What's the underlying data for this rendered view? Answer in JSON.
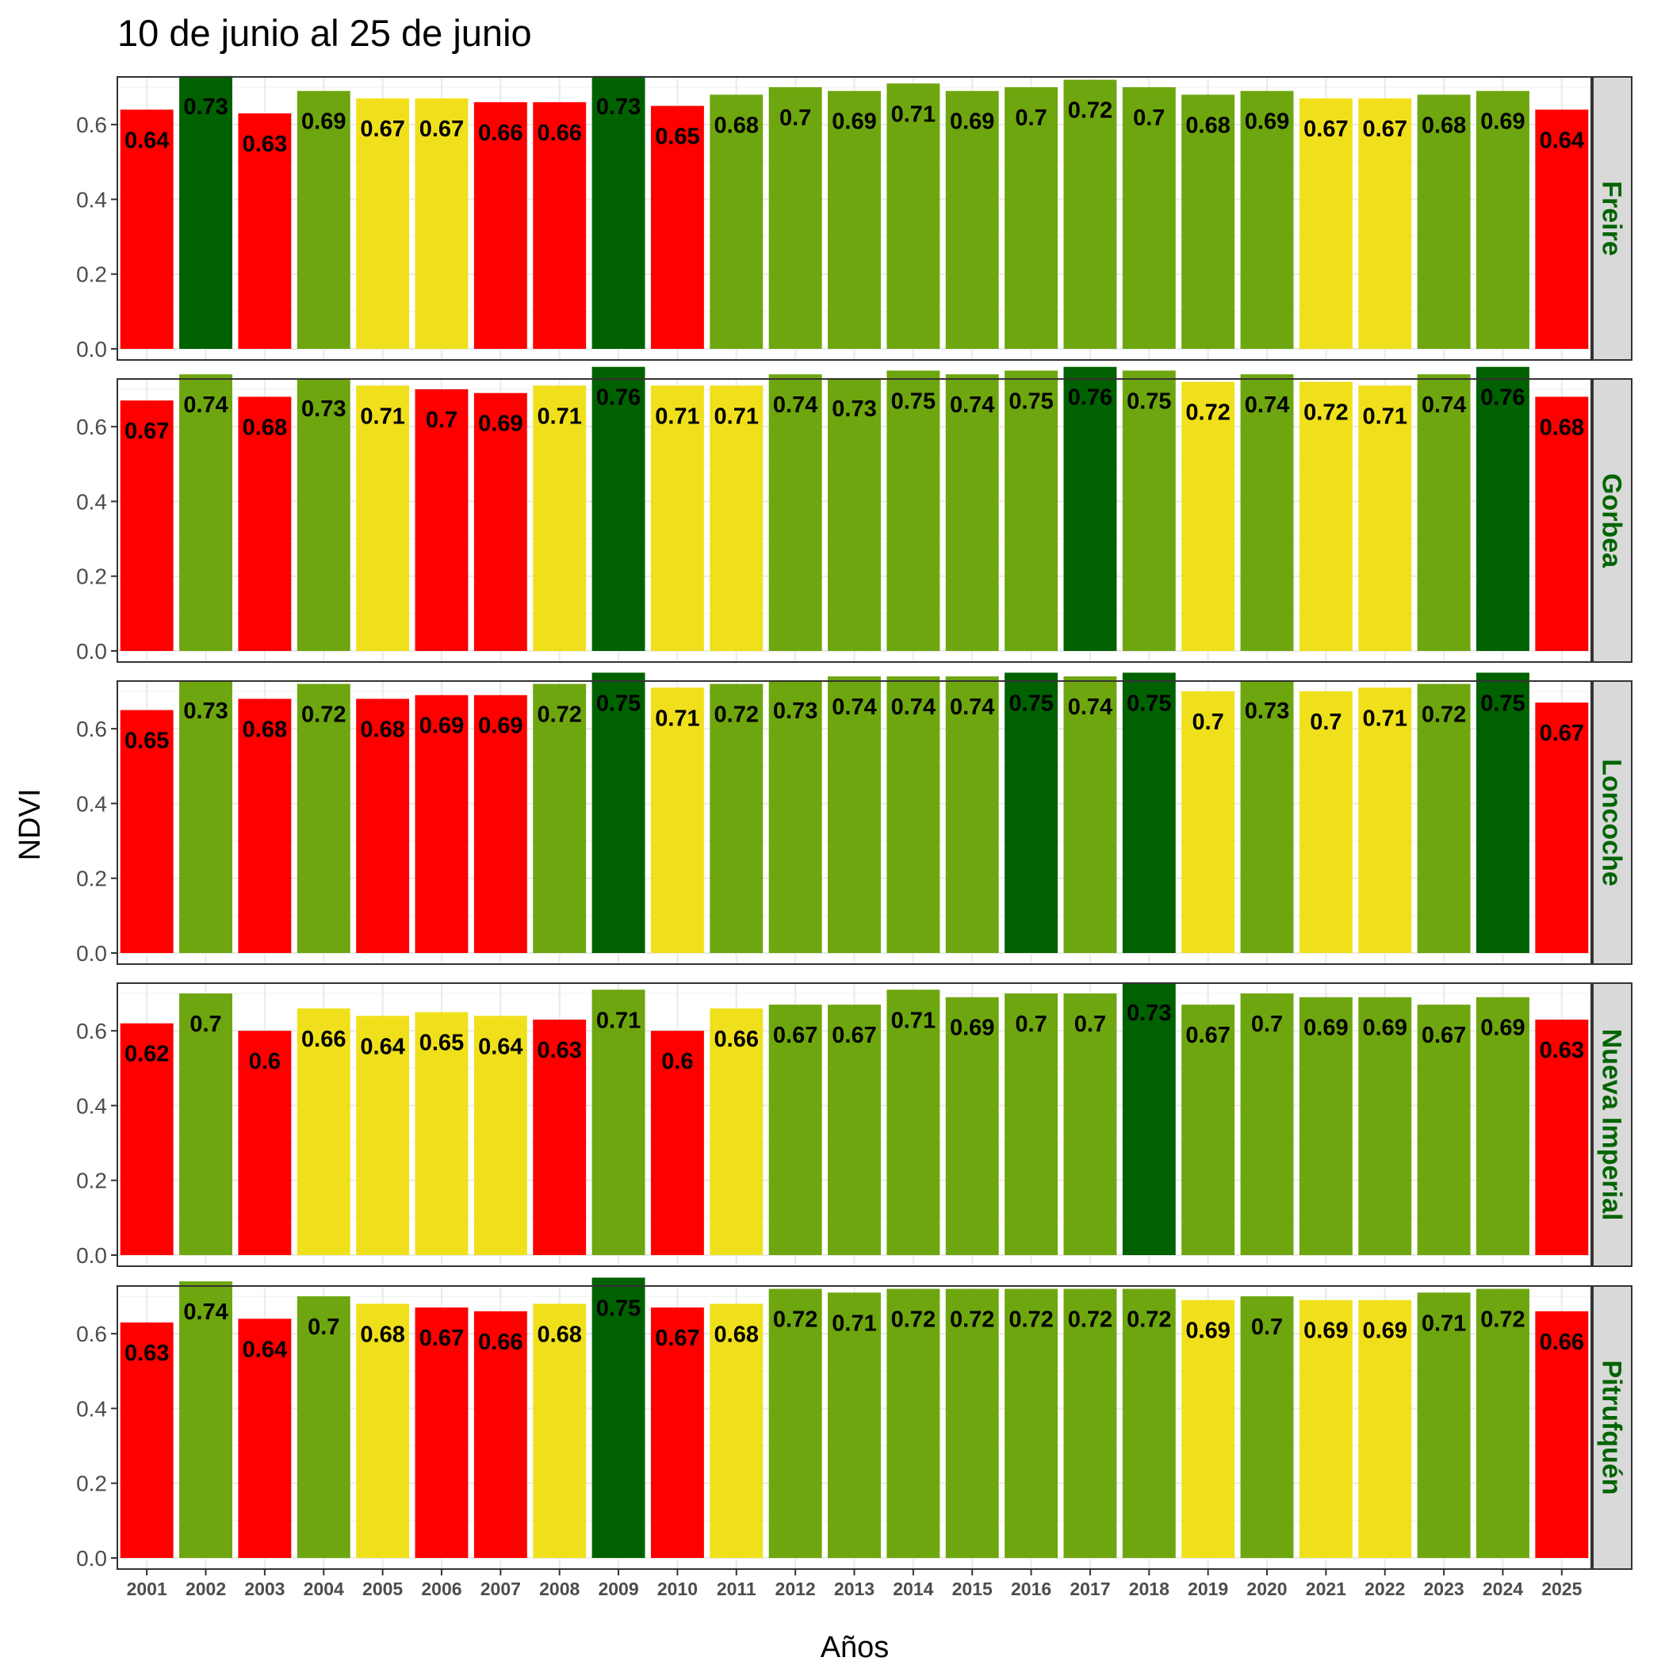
{
  "chart_data": {
    "type": "bar",
    "title": "10 de junio al 25 de junio",
    "xlabel": "Años",
    "ylabel": "NDVI",
    "ylim": [
      0,
      0.7
    ],
    "yticks": [
      "0.0",
      "0.2",
      "0.4",
      "0.6"
    ],
    "grid": true,
    "legend": "none",
    "categories": [
      "2001",
      "2002",
      "2003",
      "2004",
      "2005",
      "2006",
      "2007",
      "2008",
      "2009",
      "2010",
      "2011",
      "2012",
      "2013",
      "2014",
      "2015",
      "2016",
      "2017",
      "2018",
      "2019",
      "2020",
      "2021",
      "2022",
      "2023",
      "2024",
      "2025"
    ],
    "colors": {
      "red": "#ff0000",
      "yellow": "#f0e01c",
      "light_green": "#6ea60f",
      "dark_green": "#006100",
      "strip_bg": "#d9d9d9",
      "strip_text": "#006400"
    },
    "panels": [
      {
        "name": "Freire",
        "values": [
          0.64,
          0.73,
          0.63,
          0.69,
          0.67,
          0.67,
          0.66,
          0.66,
          0.73,
          0.65,
          0.68,
          0.7,
          0.69,
          0.71,
          0.69,
          0.7,
          0.72,
          0.7,
          0.68,
          0.69,
          0.67,
          0.67,
          0.68,
          0.69,
          0.64
        ],
        "labels": [
          "0.64",
          "0.73",
          "0.63",
          "0.69",
          "0.67",
          "0.67",
          "0.66",
          "0.66",
          "0.73",
          "0.65",
          "0.68",
          "0.7",
          "0.69",
          "0.71",
          "0.69",
          "0.7",
          "0.72",
          "0.7",
          "0.68",
          "0.69",
          "0.67",
          "0.67",
          "0.68",
          "0.69",
          "0.64"
        ],
        "bar_colors": [
          "red",
          "dark_green",
          "red",
          "light_green",
          "yellow",
          "yellow",
          "red",
          "red",
          "dark_green",
          "red",
          "light_green",
          "light_green",
          "light_green",
          "light_green",
          "light_green",
          "light_green",
          "light_green",
          "light_green",
          "light_green",
          "light_green",
          "yellow",
          "yellow",
          "light_green",
          "light_green",
          "red"
        ]
      },
      {
        "name": "Gorbea",
        "values": [
          0.67,
          0.74,
          0.68,
          0.73,
          0.71,
          0.7,
          0.69,
          0.71,
          0.76,
          0.71,
          0.71,
          0.74,
          0.73,
          0.75,
          0.74,
          0.75,
          0.76,
          0.75,
          0.72,
          0.74,
          0.72,
          0.71,
          0.74,
          0.76,
          0.68
        ],
        "labels": [
          "0.67",
          "0.74",
          "0.68",
          "0.73",
          "0.71",
          "0.7",
          "0.69",
          "0.71",
          "0.76",
          "0.71",
          "0.71",
          "0.74",
          "0.73",
          "0.75",
          "0.74",
          "0.75",
          "0.76",
          "0.75",
          "0.72",
          "0.74",
          "0.72",
          "0.71",
          "0.74",
          "0.76",
          "0.68"
        ],
        "bar_colors": [
          "red",
          "light_green",
          "red",
          "light_green",
          "yellow",
          "red",
          "red",
          "yellow",
          "dark_green",
          "yellow",
          "yellow",
          "light_green",
          "light_green",
          "light_green",
          "light_green",
          "light_green",
          "dark_green",
          "light_green",
          "yellow",
          "light_green",
          "yellow",
          "yellow",
          "light_green",
          "dark_green",
          "red"
        ]
      },
      {
        "name": "Loncoche",
        "values": [
          0.65,
          0.73,
          0.68,
          0.72,
          0.68,
          0.69,
          0.69,
          0.72,
          0.75,
          0.71,
          0.72,
          0.73,
          0.74,
          0.74,
          0.74,
          0.75,
          0.74,
          0.75,
          0.7,
          0.73,
          0.7,
          0.71,
          0.72,
          0.75,
          0.67
        ],
        "labels": [
          "0.65",
          "0.73",
          "0.68",
          "0.72",
          "0.68",
          "0.69",
          "0.69",
          "0.72",
          "0.75",
          "0.71",
          "0.72",
          "0.73",
          "0.74",
          "0.74",
          "0.74",
          "0.75",
          "0.74",
          "0.75",
          "0.7",
          "0.73",
          "0.7",
          "0.71",
          "0.72",
          "0.75",
          "0.67"
        ],
        "bar_colors": [
          "red",
          "light_green",
          "red",
          "light_green",
          "red",
          "red",
          "red",
          "light_green",
          "dark_green",
          "yellow",
          "light_green",
          "light_green",
          "light_green",
          "light_green",
          "light_green",
          "dark_green",
          "light_green",
          "dark_green",
          "yellow",
          "light_green",
          "yellow",
          "yellow",
          "light_green",
          "dark_green",
          "red"
        ]
      },
      {
        "name": "Nueva Imperial",
        "values": [
          0.62,
          0.7,
          0.6,
          0.66,
          0.64,
          0.65,
          0.64,
          0.63,
          0.71,
          0.6,
          0.66,
          0.67,
          0.67,
          0.71,
          0.69,
          0.7,
          0.7,
          0.73,
          0.67,
          0.7,
          0.69,
          0.69,
          0.67,
          0.69,
          0.63
        ],
        "labels": [
          "0.62",
          "0.7",
          "0.6",
          "0.66",
          "0.64",
          "0.65",
          "0.64",
          "0.63",
          "0.71",
          "0.6",
          "0.66",
          "0.67",
          "0.67",
          "0.71",
          "0.69",
          "0.7",
          "0.7",
          "0.73",
          "0.67",
          "0.7",
          "0.69",
          "0.69",
          "0.67",
          "0.69",
          "0.63"
        ],
        "bar_colors": [
          "red",
          "light_green",
          "red",
          "yellow",
          "yellow",
          "yellow",
          "yellow",
          "red",
          "light_green",
          "red",
          "yellow",
          "light_green",
          "light_green",
          "light_green",
          "light_green",
          "light_green",
          "light_green",
          "dark_green",
          "light_green",
          "light_green",
          "light_green",
          "light_green",
          "light_green",
          "light_green",
          "red"
        ]
      },
      {
        "name": "Pitrufquén",
        "values": [
          0.63,
          0.74,
          0.64,
          0.7,
          0.68,
          0.67,
          0.66,
          0.68,
          0.75,
          0.67,
          0.68,
          0.72,
          0.71,
          0.72,
          0.72,
          0.72,
          0.72,
          0.72,
          0.69,
          0.7,
          0.69,
          0.69,
          0.71,
          0.72,
          0.66
        ],
        "labels": [
          "0.63",
          "0.74",
          "0.64",
          "0.7",
          "0.68",
          "0.67",
          "0.66",
          "0.68",
          "0.75",
          "0.67",
          "0.68",
          "0.72",
          "0.71",
          "0.72",
          "0.72",
          "0.72",
          "0.72",
          "0.72",
          "0.69",
          "0.7",
          "0.69",
          "0.69",
          "0.71",
          "0.72",
          "0.66"
        ],
        "bar_colors": [
          "red",
          "light_green",
          "red",
          "light_green",
          "yellow",
          "red",
          "red",
          "yellow",
          "dark_green",
          "red",
          "yellow",
          "light_green",
          "light_green",
          "light_green",
          "light_green",
          "light_green",
          "light_green",
          "light_green",
          "yellow",
          "light_green",
          "yellow",
          "yellow",
          "light_green",
          "light_green",
          "red"
        ]
      }
    ]
  }
}
